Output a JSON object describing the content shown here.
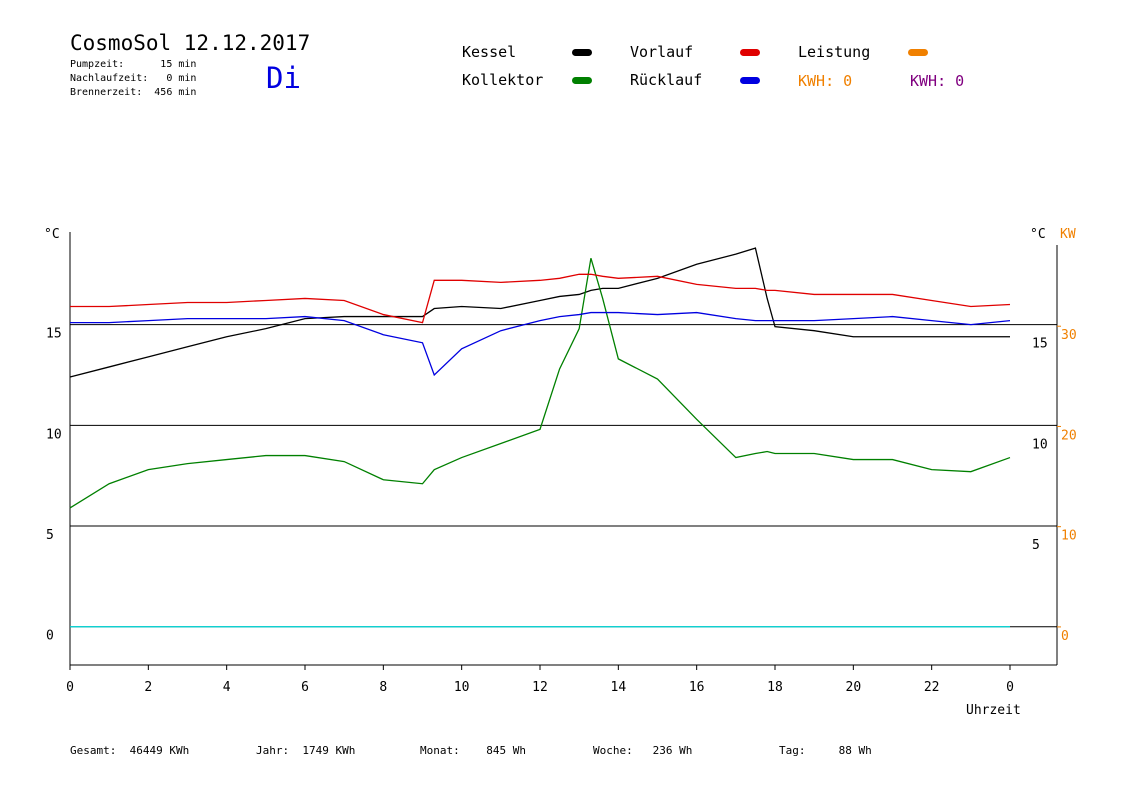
{
  "header": {
    "title": "CosmoSol 12.12.2017",
    "stats": [
      "Pumpzeit:      15 min",
      "Nachlaufzeit:   0 min",
      "Brennerzeit:  456 min"
    ],
    "day": "Di",
    "kwh": [
      "KWH: 0",
      "KWH: 0"
    ]
  },
  "footer": [
    "Gesamt:  46449 KWh",
    "Jahr:  1749 KWh",
    "Monat:    845 Wh",
    "Woche:   236 Wh",
    "Tag:     88 Wh"
  ],
  "chart_data": {
    "type": "line",
    "xlabel": "Uhrzeit",
    "ylabel": "°C",
    "ylabel_right": "°C",
    "y2label": "KW",
    "x": [
      0,
      1,
      2,
      3,
      4,
      5,
      6,
      7,
      8,
      9,
      9.3,
      10,
      11,
      12,
      12.5,
      13,
      13.3,
      13.6,
      14,
      15,
      16,
      17,
      17.5,
      17.8,
      18,
      19,
      20,
      21,
      22,
      23,
      24
    ],
    "xlim": [
      0,
      25.2
    ],
    "xticks": [
      0,
      2,
      4,
      6,
      8,
      10,
      12,
      14,
      16,
      18,
      20,
      22,
      {
        "value": 24,
        "label": "0"
      }
    ],
    "ylim": [
      -1.9,
      19.6
    ],
    "yticks": [
      0,
      5,
      10,
      15
    ],
    "y2lim": [
      -3.8,
      39.4
    ],
    "y2ticks": [
      0,
      10,
      20,
      30
    ],
    "grid": true,
    "series": [
      {
        "name": "Kessel",
        "color": "#000000",
        "values": [
          12.4,
          12.9,
          13.4,
          13.9,
          14.4,
          14.8,
          15.3,
          15.4,
          15.4,
          15.4,
          15.8,
          15.9,
          15.8,
          16.2,
          16.4,
          16.5,
          16.7,
          16.8,
          16.8,
          17.3,
          18.0,
          18.5,
          18.8,
          16.3,
          14.9,
          14.7,
          14.4,
          14.4,
          14.4,
          14.4,
          14.4
        ]
      },
      {
        "name": "Kollektor",
        "color": "#008000",
        "values": [
          5.9,
          7.1,
          7.8,
          8.1,
          8.3,
          8.5,
          8.5,
          8.2,
          7.3,
          7.1,
          7.8,
          8.4,
          9.1,
          9.8,
          12.8,
          14.8,
          18.3,
          16.3,
          13.3,
          12.3,
          10.3,
          8.4,
          8.6,
          8.7,
          8.6,
          8.6,
          8.3,
          8.3,
          7.8,
          7.7,
          8.4
        ]
      },
      {
        "name": "Vorlauf",
        "color": "#e00000",
        "values": [
          15.9,
          15.9,
          16.0,
          16.1,
          16.1,
          16.2,
          16.3,
          16.2,
          15.5,
          15.1,
          17.2,
          17.2,
          17.1,
          17.2,
          17.3,
          17.5,
          17.5,
          17.4,
          17.3,
          17.4,
          17.0,
          16.8,
          16.8,
          16.7,
          16.7,
          16.5,
          16.5,
          16.5,
          16.2,
          15.9,
          16.0
        ]
      },
      {
        "name": "Rücklauf",
        "color": "#0000e0",
        "values": [
          15.1,
          15.1,
          15.2,
          15.3,
          15.3,
          15.3,
          15.4,
          15.2,
          14.5,
          14.1,
          12.5,
          13.8,
          14.7,
          15.2,
          15.4,
          15.5,
          15.6,
          15.6,
          15.6,
          15.5,
          15.6,
          15.3,
          15.2,
          15.2,
          15.2,
          15.2,
          15.3,
          15.4,
          15.2,
          15.0,
          15.2
        ]
      },
      {
        "name": "Leistung",
        "color": "#f08000",
        "axis": "y2"
      },
      {
        "color": "#00dcdc",
        "values": [
          0,
          0,
          0,
          0,
          0,
          0,
          0,
          0,
          0,
          0,
          0,
          0,
          0,
          0,
          0,
          0,
          0,
          0,
          0,
          0,
          0,
          0,
          0,
          0,
          0,
          0,
          0,
          0,
          0,
          0,
          0
        ]
      }
    ]
  }
}
